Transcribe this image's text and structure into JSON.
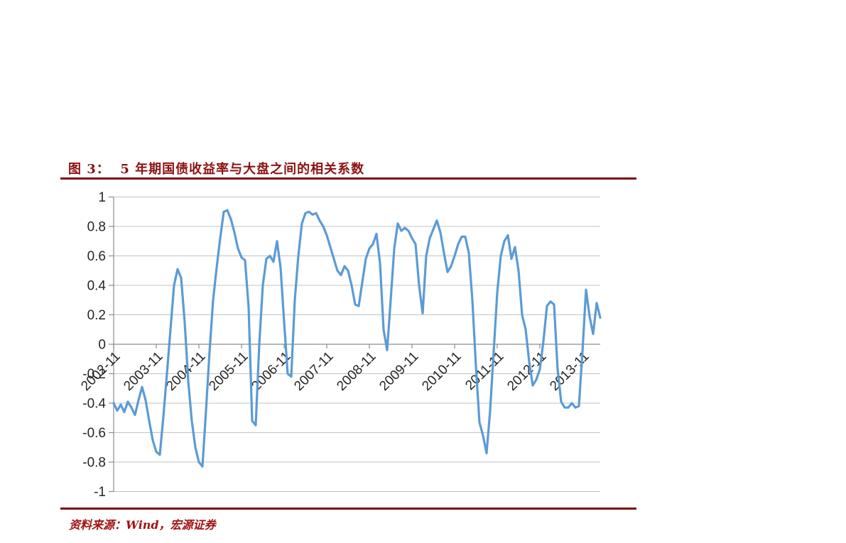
{
  "page": {
    "background": "#FFFFFF",
    "title": "图 3：  5 年期国债收益率与大盘之间的相关系数",
    "source_note": "资料来源：Wind，宏源证券",
    "title_color": "#8B1212",
    "rule_color": "#7A0B0B",
    "source_color": "#A01212"
  },
  "chart_data": {
    "type": "line",
    "title": "图 3：5 年期国债收益率与大盘之间的相关系数",
    "xlabel": "",
    "ylabel": "",
    "ylim": [
      -1,
      1
    ],
    "ytick_step": 0.2,
    "ytick_labels": [
      "1",
      "0.8",
      "0.6",
      "0.4",
      "0.2",
      "0",
      "-0.2",
      "-0.4",
      "-0.6",
      "-0.8",
      "-1"
    ],
    "x_tick_labels": [
      "2002-11",
      "2003-11",
      "2004-11",
      "2005-11",
      "2006-11",
      "2007-11",
      "2008-11",
      "2009-11",
      "2010-11",
      "2011-11",
      "2012-11",
      "2013-11"
    ],
    "grid": true,
    "legend": "none",
    "gridline_color": "#C3C3C3",
    "axis_color": "#8C8C8C",
    "label_color": "#262626",
    "series": [
      {
        "name": "5年期国债收益率与大盘之间的相关系数",
        "color": "#5B9BD5",
        "x": [
          "2002-11",
          "2002-12",
          "2003-01",
          "2003-02",
          "2003-03",
          "2003-04",
          "2003-05",
          "2003-06",
          "2003-07",
          "2003-08",
          "2003-09",
          "2003-10",
          "2003-11",
          "2003-12",
          "2004-01",
          "2004-02",
          "2004-03",
          "2004-04",
          "2004-05",
          "2004-06",
          "2004-07",
          "2004-08",
          "2004-09",
          "2004-10",
          "2004-11",
          "2004-12",
          "2005-01",
          "2005-02",
          "2005-03",
          "2005-04",
          "2005-05",
          "2005-06",
          "2005-07",
          "2005-08",
          "2005-09",
          "2005-10",
          "2005-11",
          "2005-12",
          "2006-01",
          "2006-02",
          "2006-03",
          "2006-04",
          "2006-05",
          "2006-06",
          "2006-07",
          "2006-08",
          "2006-09",
          "2006-10",
          "2006-11",
          "2006-12",
          "2007-01",
          "2007-02",
          "2007-03",
          "2007-04",
          "2007-05",
          "2007-06",
          "2007-07",
          "2007-08",
          "2007-09",
          "2007-10",
          "2007-11",
          "2007-12",
          "2008-01",
          "2008-02",
          "2008-03",
          "2008-04",
          "2008-05",
          "2008-06",
          "2008-07",
          "2008-08",
          "2008-09",
          "2008-10",
          "2008-11",
          "2008-12",
          "2009-01",
          "2009-02",
          "2009-03",
          "2009-04",
          "2009-05",
          "2009-06",
          "2009-07",
          "2009-08",
          "2009-09",
          "2009-10",
          "2009-11",
          "2009-12",
          "2010-01",
          "2010-02",
          "2010-03",
          "2010-04",
          "2010-05",
          "2010-06",
          "2010-07",
          "2010-08",
          "2010-09",
          "2010-10",
          "2010-11",
          "2010-12",
          "2011-01",
          "2011-02",
          "2011-03",
          "2011-04",
          "2011-05",
          "2011-06",
          "2011-07",
          "2011-08",
          "2011-09",
          "2011-10",
          "2011-11",
          "2011-12",
          "2012-01",
          "2012-02",
          "2012-03",
          "2012-04",
          "2012-05",
          "2012-06",
          "2012-07",
          "2012-08",
          "2012-09",
          "2012-10",
          "2012-11",
          "2012-12",
          "2013-01",
          "2013-02",
          "2013-03",
          "2013-04",
          "2013-05",
          "2013-06",
          "2013-07",
          "2013-08",
          "2013-09",
          "2013-10",
          "2013-11",
          "2013-12",
          "2014-01",
          "2014-02",
          "2014-03",
          "2014-04"
        ],
        "values": [
          -0.4,
          -0.45,
          -0.41,
          -0.46,
          -0.39,
          -0.43,
          -0.48,
          -0.38,
          -0.29,
          -0.38,
          -0.52,
          -0.65,
          -0.73,
          -0.75,
          -0.49,
          -0.2,
          0.1,
          0.4,
          0.51,
          0.45,
          0.15,
          -0.25,
          -0.52,
          -0.7,
          -0.8,
          -0.83,
          -0.45,
          -0.05,
          0.3,
          0.52,
          0.72,
          0.9,
          0.91,
          0.85,
          0.76,
          0.65,
          0.59,
          0.57,
          0.25,
          -0.52,
          -0.55,
          0.0,
          0.4,
          0.58,
          0.6,
          0.56,
          0.7,
          0.52,
          0.15,
          -0.2,
          -0.22,
          0.3,
          0.6,
          0.82,
          0.89,
          0.9,
          0.88,
          0.89,
          0.84,
          0.8,
          0.74,
          0.66,
          0.58,
          0.5,
          0.47,
          0.53,
          0.5,
          0.4,
          0.27,
          0.26,
          0.42,
          0.58,
          0.65,
          0.68,
          0.75,
          0.55,
          0.1,
          -0.04,
          0.3,
          0.65,
          0.82,
          0.77,
          0.79,
          0.77,
          0.72,
          0.68,
          0.4,
          0.21,
          0.6,
          0.72,
          0.78,
          0.84,
          0.76,
          0.62,
          0.49,
          0.53,
          0.6,
          0.68,
          0.73,
          0.73,
          0.62,
          0.3,
          -0.15,
          -0.53,
          -0.62,
          -0.74,
          -0.45,
          -0.05,
          0.35,
          0.6,
          0.7,
          0.74,
          0.58,
          0.66,
          0.5,
          0.2,
          0.1,
          -0.12,
          -0.28,
          -0.24,
          -0.17,
          0.02,
          0.26,
          0.29,
          0.27,
          -0.17,
          -0.39,
          -0.43,
          -0.43,
          -0.4,
          -0.43,
          -0.42,
          -0.05,
          0.37,
          0.19,
          0.07,
          0.28,
          0.18
        ]
      }
    ]
  }
}
